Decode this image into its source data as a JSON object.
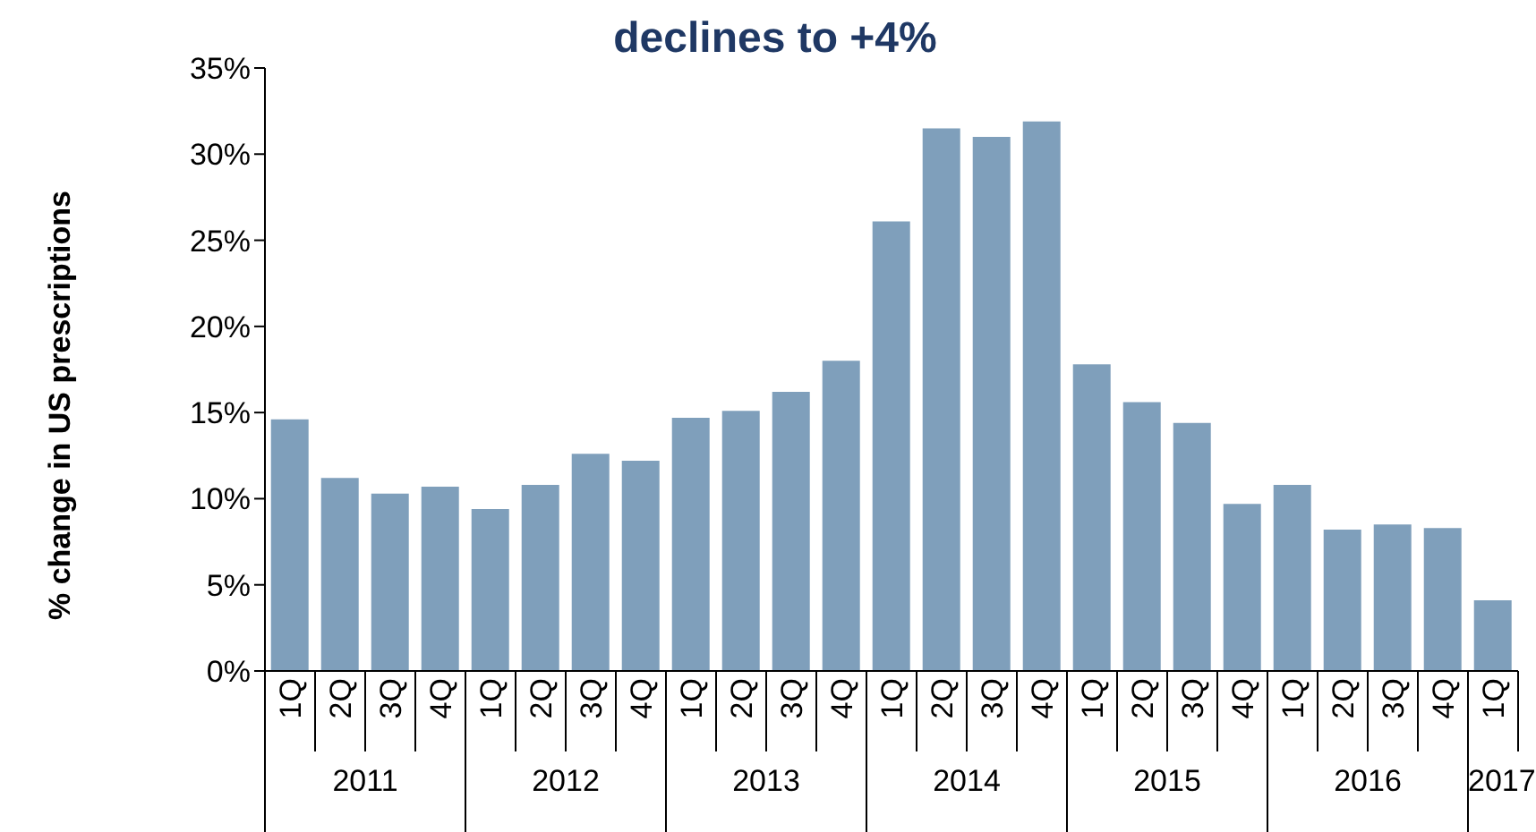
{
  "chart_data": {
    "type": "bar",
    "title": "declines to +4%",
    "ylabel": "% change in US prescriptions",
    "categories": [
      "1Q",
      "2Q",
      "3Q",
      "4Q",
      "1Q",
      "2Q",
      "3Q",
      "4Q",
      "1Q",
      "2Q",
      "3Q",
      "4Q",
      "1Q",
      "2Q",
      "3Q",
      "4Q",
      "1Q",
      "2Q",
      "3Q",
      "4Q",
      "1Q",
      "2Q",
      "3Q",
      "4Q",
      "1Q"
    ],
    "values": [
      14.6,
      11.2,
      10.3,
      10.7,
      9.4,
      10.8,
      12.6,
      12.2,
      14.7,
      15.1,
      16.2,
      18.0,
      26.1,
      31.5,
      31.0,
      31.9,
      17.8,
      15.6,
      14.4,
      9.7,
      10.8,
      8.2,
      8.5,
      8.3,
      4.1
    ],
    "color": "#7f9fbb",
    "ylim": [
      0,
      35
    ],
    "yticks": [
      {
        "value": 0,
        "label": "0%"
      },
      {
        "value": 5,
        "label": "5%"
      },
      {
        "value": 10,
        "label": "10%"
      },
      {
        "value": 15,
        "label": "15%"
      },
      {
        "value": 20,
        "label": "20%"
      },
      {
        "value": 25,
        "label": "25%"
      },
      {
        "value": 30,
        "label": "30%"
      },
      {
        "value": 35,
        "label": "35%"
      }
    ],
    "annotations": [
      "2011",
      "2012",
      "2013",
      "2014",
      "2015",
      "2016",
      "2017"
    ],
    "grid": false,
    "legend": false
  }
}
